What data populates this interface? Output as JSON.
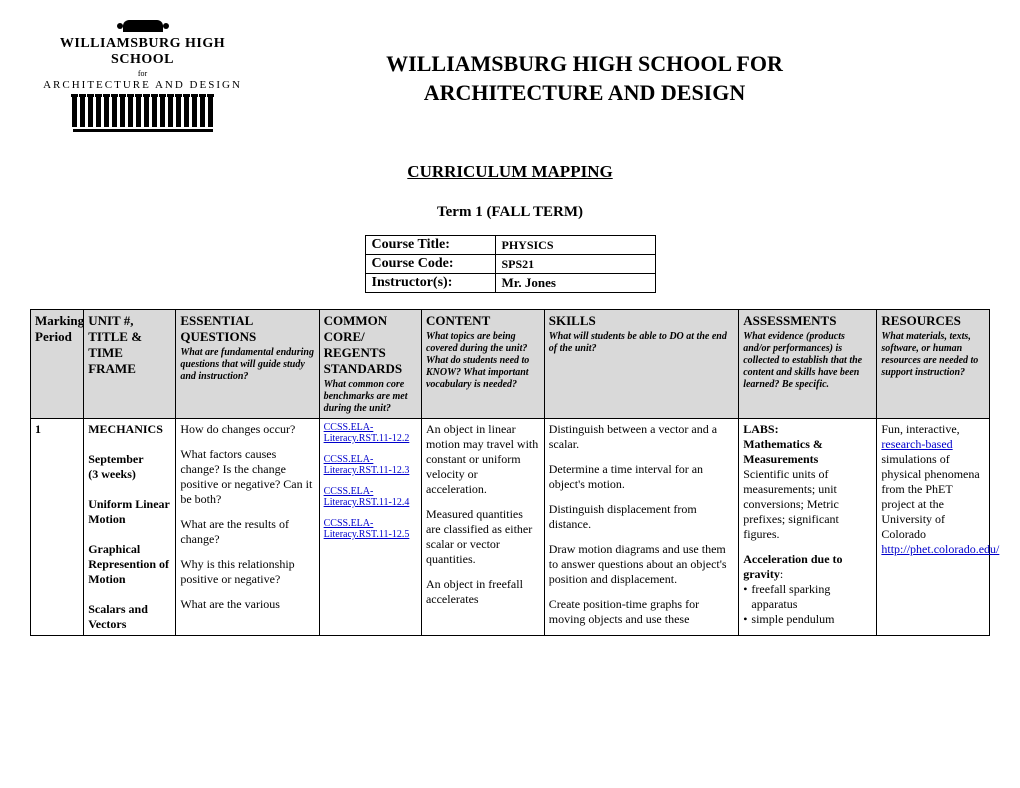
{
  "logo": {
    "line1": "WILLIAMSBURG HIGH SCHOOL",
    "for": "for",
    "line2": "ARCHITECTURE AND DESIGN"
  },
  "title_line1": "WILLIAMSBURG HIGH SCHOOL FOR",
  "title_line2": "ARCHITECTURE AND DESIGN",
  "subtitle": "CURRICULUM MAPPING",
  "term": "Term 1 (FALL TERM)",
  "course_info": {
    "title_label": "Course Title:",
    "title_value": "PHYSICS",
    "code_label": "Course Code:",
    "code_value": "SPS21",
    "instructor_label": "Instructor(s):",
    "instructor_value": "Mr. Jones"
  },
  "headers": {
    "marking": {
      "main": "Marking Period",
      "sub": ""
    },
    "unit": {
      "main": "UNIT #, TITLE & TIME FRAME",
      "sub": ""
    },
    "essential": {
      "main": "ESSENTIAL QUESTIONS",
      "sub": "What are fundamental enduring questions that will guide study and instruction?"
    },
    "common": {
      "main": "COMMON CORE/ REGENTS STANDARDS",
      "sub": "What common core benchmarks are met during the unit?"
    },
    "content": {
      "main": "CONTENT",
      "sub": "What topics are being covered during the unit?  What do students need to KNOW?\nWhat important vocabulary is needed?"
    },
    "skills": {
      "main": "SKILLS",
      "sub": "What will students be able to DO at the end of the unit?"
    },
    "assess": {
      "main": "ASSESSMENTS",
      "sub": "What evidence (products and/or performances) is collected to establish that the content and skills have been learned?  Be specific."
    },
    "resources": {
      "main": "RESOURCES",
      "sub": "What materials, texts, software, or human resources are needed to support instruction?"
    }
  },
  "row1": {
    "marking": "1",
    "unit": {
      "title": "MECHANICS",
      "sept": "September",
      "weeks": "(3 weeks)",
      "t1": "Uniform Linear Motion",
      "t2": "Graphical Represention of  Motion",
      "t3": "Scalars and Vectors"
    },
    "essential": {
      "q1": "How do changes occur?",
      "q2": "What factors causes change? Is the change positive or negative? Can it be both?",
      "q3": "What are the results of change?",
      "q4": "Why is this relationship positive or negative?",
      "q5": "What are the various"
    },
    "standards": {
      "s1": "CCSS.ELA-Literacy.RST.11-12.2",
      "s2": "CCSS.ELA-Literacy.RST.11-12.3",
      "s3": "CCSS.ELA-Literacy.RST.11-12.4",
      "s4": "CCSS.ELA-Literacy.RST.11-12.5"
    },
    "content": {
      "p1": "An object in linear motion may travel with constant or uniform velocity or acceleration.",
      "p2": "Measured quantities are classified as either scalar or vector quantities.",
      "p3": "An object in freefall accelerates"
    },
    "skills": {
      "s1": "Distinguish between a vector and a scalar.",
      "s2": "Determine a time interval for an object's motion.",
      "s3": "Distinguish displacement from distance.",
      "s4": "Draw motion diagrams and use them to answer questions about an object's position and displacement.",
      "s5": "Create position-time graphs for moving objects and use these"
    },
    "assess": {
      "labs_label": "LABS:",
      "labs_title": "Mathematics & Measurements",
      "labs_desc": "Scientific units of measurements; unit conversions; Metric prefixes; significant figures.",
      "acc_label": "Acceleration due to gravity",
      "b1": "freefall sparking apparatus",
      "b2": "simple pendulum"
    },
    "resources": {
      "p1a": "Fun, interactive, ",
      "p1_link": "research-based",
      "p1b": " simulations of physical phenomena from the PhET project at the University of Colorado",
      "link": "http://phet.colorado.edu/"
    }
  }
}
